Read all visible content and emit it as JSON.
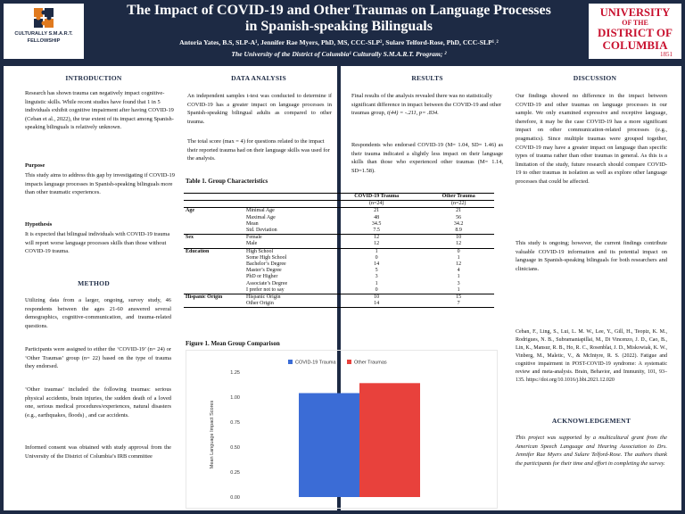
{
  "header": {
    "title_line1": "The Impact of COVID-19 and Other Traumas on Language Processes",
    "title_line2": "in Spanish-speaking Bilinguals",
    "authors": "Antoria Yates, B.S, SLP-A¹, Jennifer Rae Myers, PhD, MS, CCC-SLP², Sulare Telford-Rose, PhD, CCC-SLP¹˒²",
    "affiliations": "The University of the District of Columbia¹ Culturally S.M.A.R.T. Program; ²"
  },
  "logo_left": {
    "line1": "CULTURALLY S.M.A.R.T.",
    "line2": "FELLOWSHIP"
  },
  "logo_right": {
    "line1": "UNIVERSITY",
    "line2": "OF THE",
    "line3": "DISTRICT OF",
    "line4": "COLUMBIA",
    "line5": "1851"
  },
  "introduction": {
    "heading": "INTRODUCTION",
    "body": "Research has shown trauma can negatively impact cognitive-linguistic skills. While recent studies have found that 1 in 5 individuals exhibit cognitive impairment after having COVID-19 (Ceban et al., 2022), the true extent of its impact among Spanish-speaking bilinguals is relatively unknown.",
    "purpose_heading": "Purpose",
    "purpose": "This study aims to address this gap by investigating if COVID-19 impacts language processes in Spanish-speaking bilinguals more than other traumatic experiences.",
    "hypothesis_heading": "Hypothesis",
    "hypothesis": "It is expected that bilingual individuals with COVID-19 trauma will report worse language processes skills than those without COVID-19 trauma."
  },
  "method": {
    "heading": "METHOD",
    "p1": "Utilizing data from a larger, ongoing, survey study, 46 respondents between the ages 21-60 answered several demographics, cognitive-communication, and trauma-related questions.",
    "p2": "Participants were assigned to either the ‘COVID-19’ (n= 24) or ‘Other Traumas’ group (n= 22) based on the type of trauma they endorsed.",
    "p3": "‘Other traumas’ included the following traumas: serious physical accidents, brain injuries, the sudden death of a loved one, serious medical procedures/experiences, natural disasters (e.g., earthquakes, floods) , and car accidents.",
    "p4": "Informed consent was obtained with study approval from the University of the District of Columbia’s IRB committee"
  },
  "data_analysis": {
    "heading": "DATA ANALYSIS",
    "p1": "An independent samples t-test was conducted to determine if COVID-19 has a greater impact on language processes in Spanish-speaking bilingual adults as compared to other trauma.",
    "p2": "The total score (max = 4) for questions related to the impact their reported trauma had on their language skills was used for the analysis."
  },
  "results": {
    "heading": "RESULTS",
    "p1": "Final results of the analysis revealed there was no statistically significant difference in impact between the COVID-19 and other traumas group,",
    "p1b": "t(44) = -.211, p= .834.",
    "p2": "Respondents who endorsed COVID-19 (M= 1.04, SD= 1.46) as their trauma indicated a slightly less impact on their language skills than those who experienced other traumas (M= 1.14, SD=1.58)."
  },
  "table": {
    "caption": "Table 1. Group Characteristics",
    "col1": "COVID-19 Trauma",
    "col1_n": "(n=24)",
    "col2": "Other Trauma",
    "col2_n": "(n=22)",
    "groups": [
      {
        "name": "Age",
        "rows": [
          [
            "Minimal Age",
            "21",
            "21"
          ],
          [
            "Maximal Age",
            "48",
            "56"
          ],
          [
            "Mean",
            "34.5",
            "34.2"
          ],
          [
            "Std. Deviation",
            "7.5",
            "8.9"
          ]
        ]
      },
      {
        "name": "Sex",
        "rows": [
          [
            "Female",
            "12",
            "10"
          ],
          [
            "Male",
            "12",
            "12"
          ]
        ]
      },
      {
        "name": "Education",
        "rows": [
          [
            "High School",
            "1",
            "0"
          ],
          [
            "Some High School",
            "0",
            "1"
          ],
          [
            "Bachelor’s Degree",
            "14",
            "12"
          ],
          [
            "Master’s Degree",
            "5",
            "4"
          ],
          [
            "PhD or Higher",
            "3",
            "1"
          ],
          [
            "Associate’s Degree",
            "1",
            "3"
          ],
          [
            "I prefer not to say",
            "0",
            "1"
          ]
        ]
      },
      {
        "name": "Hispanic Origin",
        "rows": [
          [
            "Hispanic Origin",
            "10",
            "15"
          ],
          [
            "Other Origin",
            "14",
            "7"
          ]
        ]
      }
    ]
  },
  "figure_caption": "Figure 1. Mean Group Comparison",
  "chart_data": {
    "type": "bar",
    "title": "",
    "xlabel": "",
    "ylabel": "Mean Language Impact Scores",
    "ylim": [
      0,
      1.25
    ],
    "yticks": [
      "0.00",
      "0.25",
      "0.50",
      "0.75",
      "1.00",
      "1.25"
    ],
    "series": [
      {
        "name": "COVID-19 Trauma",
        "values": [
          1.04
        ],
        "color": "#3b6cd6"
      },
      {
        "name": "Other Traumas",
        "values": [
          1.14
        ],
        "color": "#e8413c"
      }
    ],
    "legend": "top"
  },
  "discussion": {
    "heading": "DISCUSSION",
    "p1": "Our findings showed no difference in the impact between COVID-19 and other traumas on language processes in our sample. We only examined expressive and receptive language, therefore, it may be the case COVID-19 has a more significant impact on other communication-related processes (e.g., pragmatics). Since multiple traumas were grouped together, COVID-19 may have a greater impact on language than specific types of trauma rather than other traumas in general. As this is a limitation of the study, future research should compare COVID-19 to other traumas in isolation as well as explore other language processes that could be affected.",
    "p2": "This study is ongoing; however, the current findings contribute valuable COVID-19 information and its potential impact on language in Spanish-speaking bilinguals for both researchers and clinicians."
  },
  "reference": "Ceban, F., Ling, S., Lui, L. M. W., Lee, Y., Gill, H., Teopiz, K. M., Rodrigues, N. B., Subramaniapillai, M., Di Vincenzo, J. D., Cao, B., Lin, K., Mansur, R. B., Ho, R. C., Rosenblat, J. D., Miskowiak, K. W., Vinberg, M., Maletic, V., & McIntyre, R. S. (2022). Fatigue and cognitive impairment in POST-COVID-19 syndrome: A systematic review and meta-analysis. Brain, Behavior, and Immunity, 101, 93–135. https://doi.org/10.1016/j.bbi.2021.12.020",
  "acknowledgement": {
    "heading": "ACKNOWLEDGEMENT",
    "body": "This project was supported by a multicultural grant from the American Speech Language and Hearing Association to Drs. Jennifer Rae Myers and Sulare Telford-Rose. The authors thank the participants for their time and effort in completing the survey."
  }
}
